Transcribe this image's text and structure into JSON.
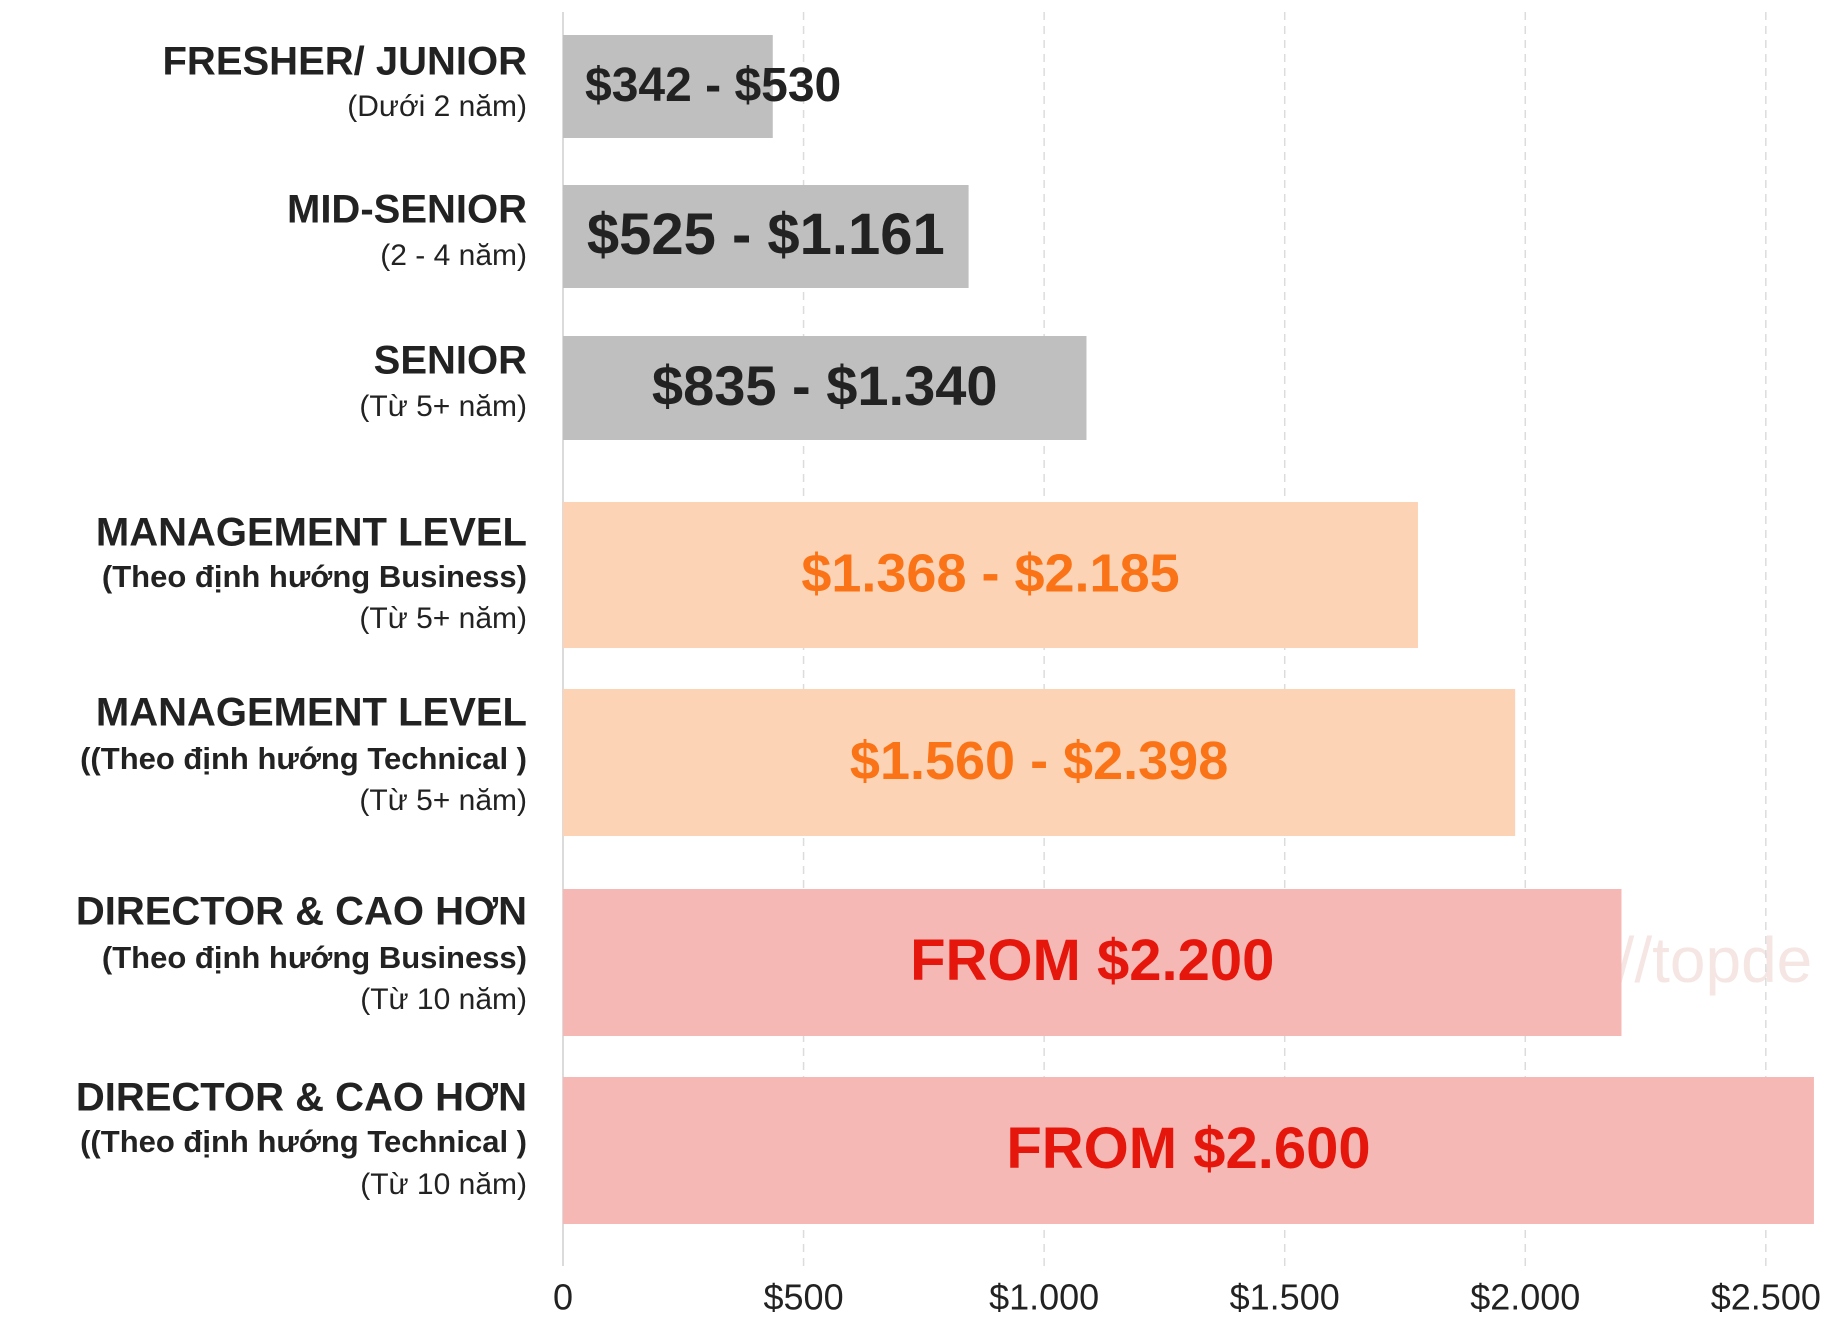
{
  "chart_data": {
    "type": "bar",
    "orientation": "horizontal",
    "categories": [
      {
        "title": "FRESHER/ JUNIOR",
        "detail": null,
        "years": "(Dưới 2 năm)"
      },
      {
        "title": "MID-SENIOR",
        "detail": null,
        "years": "(2 - 4 năm)"
      },
      {
        "title": "SENIOR",
        "detail": null,
        "years": "(Từ 5+ năm)"
      },
      {
        "title": "MANAGEMENT LEVEL",
        "detail": "(Theo định hướng Business)",
        "years": "(Từ 5+ năm)"
      },
      {
        "title": "MANAGEMENT LEVEL",
        "detail": "((Theo định hướng Technical )",
        "years": "(Từ 5+ năm)"
      },
      {
        "title": "DIRECTOR & CAO HƠN",
        "detail": "(Theo định hướng Business)",
        "years": "(Từ 10 năm)"
      },
      {
        "title": "DIRECTOR & CAO HƠN",
        "detail": "((Theo định hướng Technical )",
        "years": "(Từ 10 năm)"
      }
    ],
    "values": [
      436,
      843,
      1088,
      1777,
      1979,
      2200,
      2600
    ],
    "bar_texts": [
      "$342 - $530",
      "$525 - $1.161",
      "$835 - $1.340",
      "$1.368 - $2.185",
      "$1.560 - $2.398",
      "FROM $2.200",
      "FROM $2.600"
    ],
    "colors": [
      "#bfbfbf",
      "#bfbfbf",
      "#bfbfbf",
      "#fdd3b6",
      "#fdd3b6",
      "#f5b8b5",
      "#f5b8b5"
    ],
    "text_colors": [
      "#222222",
      "#222222",
      "#222222",
      "#fa7417",
      "#fa7417",
      "#e5170c",
      "#e5170c"
    ],
    "xlim": [
      0,
      2650
    ],
    "xticks": [
      0,
      {
        "value": 500,
        "label": "$500"
      },
      {
        "value": 1000,
        "label": "$1.000"
      },
      {
        "value": 1500,
        "label": "$1.500"
      },
      {
        "value": 2000,
        "label": "$2.000"
      },
      {
        "value": 2500,
        "label": "$2.500"
      }
    ],
    "grid": true,
    "watermark": "https://topde"
  }
}
